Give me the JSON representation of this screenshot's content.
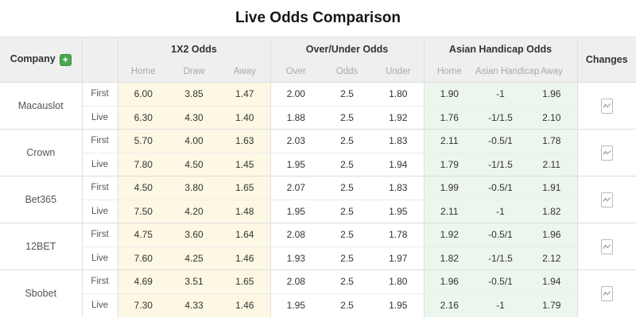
{
  "title": "Live Odds Comparison",
  "header": {
    "company": "Company",
    "add_button": "+",
    "groups": [
      {
        "label": "1X2 Odds",
        "subs": [
          "Home",
          "Draw",
          "Away"
        ]
      },
      {
        "label": "Over/Under Odds",
        "subs": [
          "Over",
          "Odds",
          "Under"
        ]
      },
      {
        "label": "Asian Handicap Odds",
        "subs": [
          "Home",
          "Asian Handicap",
          "Away"
        ]
      }
    ],
    "changes": "Changes"
  },
  "companies": [
    {
      "name": "Macauslot",
      "rows": [
        {
          "type": "First",
          "x12": [
            "6.00",
            "3.85",
            "1.47"
          ],
          "ou": [
            "2.00",
            "2.5",
            "1.80"
          ],
          "ah": [
            "1.90",
            "-1",
            "1.96"
          ]
        },
        {
          "type": "Live",
          "x12": [
            "6.30",
            "4.30",
            "1.40"
          ],
          "ou": [
            "1.88",
            "2.5",
            "1.92"
          ],
          "ah": [
            "1.76",
            "-1/1.5",
            "2.10"
          ]
        }
      ]
    },
    {
      "name": "Crown",
      "rows": [
        {
          "type": "First",
          "x12": [
            "5.70",
            "4.00",
            "1.63"
          ],
          "ou": [
            "2.03",
            "2.5",
            "1.83"
          ],
          "ah": [
            "2.11",
            "-0.5/1",
            "1.78"
          ]
        },
        {
          "type": "Live",
          "x12": [
            "7.80",
            "4.50",
            "1.45"
          ],
          "ou": [
            "1.95",
            "2.5",
            "1.94"
          ],
          "ah": [
            "1.79",
            "-1/1.5",
            "2.11"
          ]
        }
      ]
    },
    {
      "name": "Bet365",
      "rows": [
        {
          "type": "First",
          "x12": [
            "4.50",
            "3.80",
            "1.65"
          ],
          "ou": [
            "2.07",
            "2.5",
            "1.83"
          ],
          "ah": [
            "1.99",
            "-0.5/1",
            "1.91"
          ]
        },
        {
          "type": "Live",
          "x12": [
            "7.50",
            "4.20",
            "1.48"
          ],
          "ou": [
            "1.95",
            "2.5",
            "1.95"
          ],
          "ah": [
            "2.11",
            "-1",
            "1.82"
          ]
        }
      ]
    },
    {
      "name": "12BET",
      "rows": [
        {
          "type": "First",
          "x12": [
            "4.75",
            "3.60",
            "1.64"
          ],
          "ou": [
            "2.08",
            "2.5",
            "1.78"
          ],
          "ah": [
            "1.92",
            "-0.5/1",
            "1.96"
          ]
        },
        {
          "type": "Live",
          "x12": [
            "7.60",
            "4.25",
            "1.46"
          ],
          "ou": [
            "1.93",
            "2.5",
            "1.97"
          ],
          "ah": [
            "1.82",
            "-1/1.5",
            "2.12"
          ]
        }
      ]
    },
    {
      "name": "Sbobet",
      "rows": [
        {
          "type": "First",
          "x12": [
            "4.69",
            "3.51",
            "1.65"
          ],
          "ou": [
            "2.08",
            "2.5",
            "1.80"
          ],
          "ah": [
            "1.96",
            "-0.5/1",
            "1.94"
          ]
        },
        {
          "type": "Live",
          "x12": [
            "7.30",
            "4.33",
            "1.46"
          ],
          "ou": [
            "1.95",
            "2.5",
            "1.95"
          ],
          "ah": [
            "2.16",
            "-1",
            "1.79"
          ]
        }
      ]
    }
  ],
  "icons": {
    "company_add": "plus-icon",
    "changes": "line-chart-icon"
  },
  "colors": {
    "header_bg": "#efefef",
    "x12_bg": "#fdf8e3",
    "ah_bg": "#ecf6ec",
    "accent_green": "#4aa94e",
    "border": "#dfdfdf"
  }
}
